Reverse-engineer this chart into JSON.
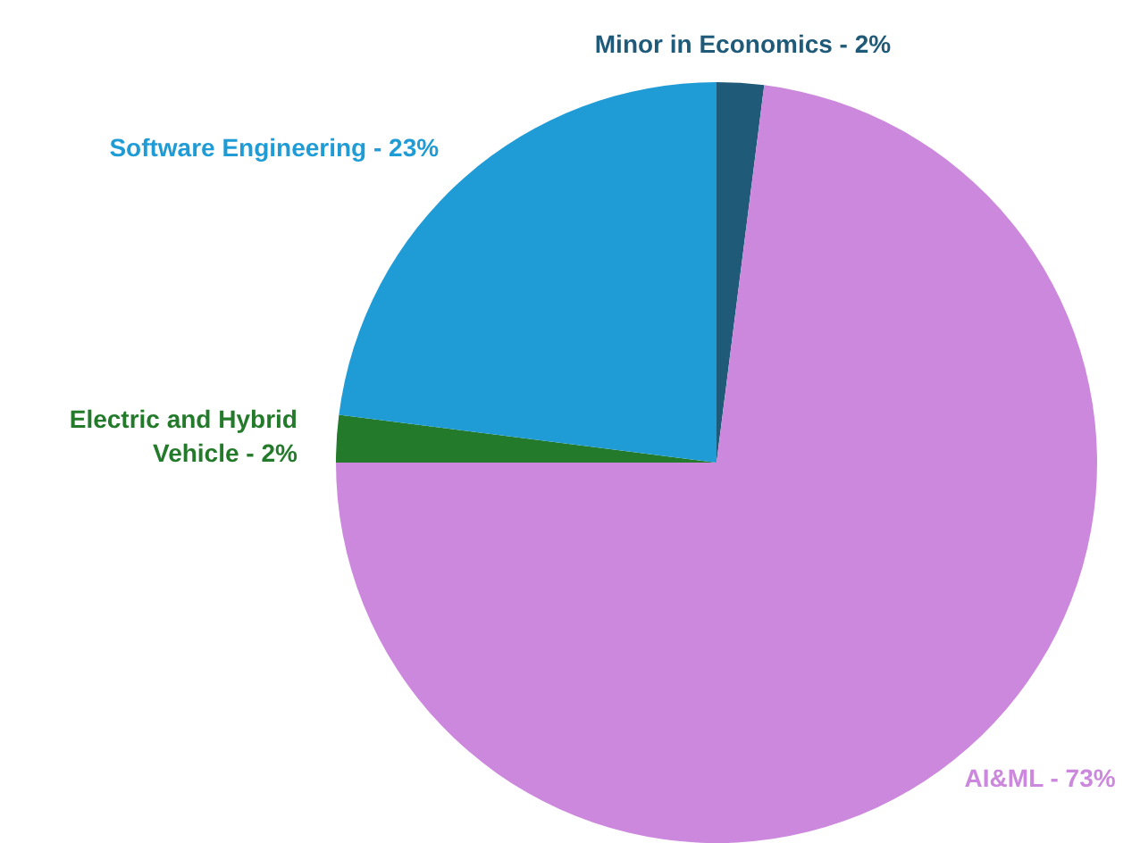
{
  "chart_data": {
    "type": "pie",
    "categories": [
      "Minor in Economics",
      "AI&ML",
      "Electric and Hybrid Vehicle",
      "Software Engineering"
    ],
    "values": [
      2,
      73,
      2,
      23
    ],
    "value_labels": [
      "2%",
      "73%",
      "2%",
      "23%"
    ],
    "colors": [
      "#1f5a78",
      "#cc88dd",
      "#237a2a",
      "#1f9bd6"
    ]
  }
}
